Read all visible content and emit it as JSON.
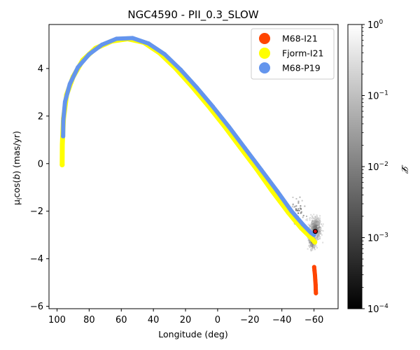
{
  "chart_data": {
    "type": "scatter",
    "title": "NGC4590 - PII_0.3_SLOW",
    "xlabel": "Longitude (deg)",
    "ylabel": "μ_l cos(b) (mas/yr)",
    "ylabel_parts": {
      "base": "μ",
      "sub": "l",
      "rest": "cos(",
      "italic": "b",
      "tail": ") (mas/yr)"
    },
    "xlim": [
      105,
      -75
    ],
    "ylim": [
      -6.1,
      5.85
    ],
    "x_ticks": [
      {
        "value": 100,
        "label": "100"
      },
      {
        "value": 80,
        "label": "80"
      },
      {
        "value": 60,
        "label": "60"
      },
      {
        "value": 40,
        "label": "40"
      },
      {
        "value": 20,
        "label": "20"
      },
      {
        "value": 0,
        "label": "0"
      },
      {
        "value": -20,
        "label": "−20"
      },
      {
        "value": -40,
        "label": "−40"
      },
      {
        "value": -60,
        "label": "−60"
      }
    ],
    "y_ticks": [
      {
        "value": 4,
        "label": "4"
      },
      {
        "value": 2,
        "label": "2"
      },
      {
        "value": 0,
        "label": "0"
      },
      {
        "value": -2,
        "label": "−2"
      },
      {
        "value": -4,
        "label": "−4"
      },
      {
        "value": -6,
        "label": "−6"
      }
    ],
    "legend_position": "top-right",
    "series": [
      {
        "name": "M68-I21",
        "color": "#ff4500",
        "points": [
          [
            -60.1,
            -4.35
          ],
          [
            -60.3,
            -4.5
          ],
          [
            -60.6,
            -4.7
          ],
          [
            -60.8,
            -4.9
          ],
          [
            -61.0,
            -5.1
          ],
          [
            -61.1,
            -5.3
          ],
          [
            -61.2,
            -5.45
          ]
        ]
      },
      {
        "name": "Fjorm-I21",
        "color": "#ffff00",
        "points": [
          [
            96.8,
            -0.05
          ],
          [
            96.7,
            0.8
          ],
          [
            96.0,
            1.9
          ],
          [
            94.0,
            2.9
          ],
          [
            90.0,
            3.65
          ],
          [
            84.0,
            4.35
          ],
          [
            76.0,
            4.85
          ],
          [
            66.0,
            5.15
          ],
          [
            56.0,
            5.25
          ],
          [
            46.0,
            5.1
          ],
          [
            36.0,
            4.65
          ],
          [
            26.0,
            4.0
          ],
          [
            16.0,
            3.25
          ],
          [
            6.0,
            2.45
          ],
          [
            -4.0,
            1.6
          ],
          [
            -14.0,
            0.7
          ],
          [
            -24.0,
            -0.2
          ],
          [
            -34.0,
            -1.15
          ],
          [
            -44.0,
            -2.05
          ],
          [
            -52.0,
            -2.7
          ],
          [
            -58.0,
            -3.1
          ],
          [
            -60.5,
            -3.3
          ]
        ]
      },
      {
        "name": "M68-P19",
        "color": "#6495ed",
        "points": [
          [
            96.2,
            1.15
          ],
          [
            96.1,
            1.8
          ],
          [
            95.0,
            2.6
          ],
          [
            92.0,
            3.35
          ],
          [
            87.0,
            4.05
          ],
          [
            80.0,
            4.6
          ],
          [
            72.0,
            5.0
          ],
          [
            63.0,
            5.25
          ],
          [
            53.0,
            5.28
          ],
          [
            43.0,
            5.05
          ],
          [
            33.0,
            4.6
          ],
          [
            23.0,
            3.95
          ],
          [
            13.0,
            3.2
          ],
          [
            3.0,
            2.4
          ],
          [
            -7.0,
            1.55
          ],
          [
            -17.0,
            0.65
          ],
          [
            -27.0,
            -0.25
          ],
          [
            -37.0,
            -1.15
          ],
          [
            -46.0,
            -2.0
          ],
          [
            -53.0,
            -2.55
          ],
          [
            -58.0,
            -2.9
          ],
          [
            -60.0,
            -3.0
          ]
        ]
      }
    ],
    "progenitor_marker": {
      "x": -60.8,
      "y": -2.85
    },
    "colorbar": {
      "label": "𝓛",
      "scale": "log",
      "range": [
        0.0001,
        1
      ],
      "ticks": [
        {
          "value": 1,
          "base": "10",
          "exp": "0"
        },
        {
          "value": 0.1,
          "base": "10",
          "exp": "−1"
        },
        {
          "value": 0.01,
          "base": "10",
          "exp": "−2"
        },
        {
          "value": 0.001,
          "base": "10",
          "exp": "−3"
        },
        {
          "value": 0.0001,
          "base": "10",
          "exp": "−4"
        }
      ]
    }
  }
}
